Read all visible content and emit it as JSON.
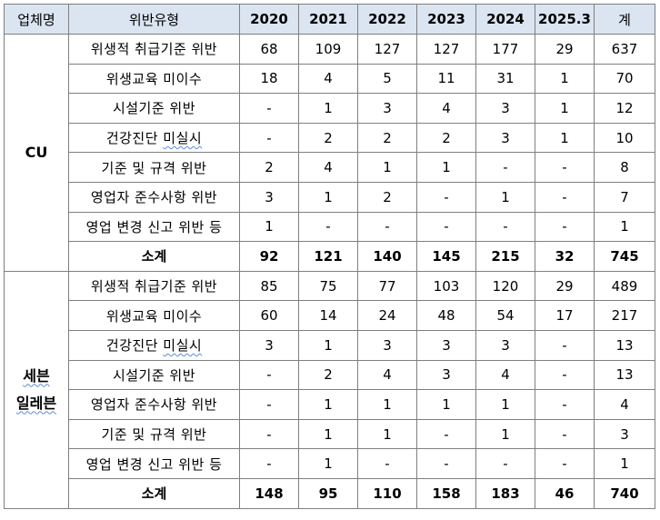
{
  "header": {
    "company": "업체명",
    "type": "위반유형",
    "years": [
      "2020",
      "2021",
      "2022",
      "2023",
      "2024",
      "2025.3"
    ],
    "total": "계"
  },
  "groups": [
    {
      "company_lines": [
        "CU"
      ],
      "rows": [
        {
          "type": "위생적 취급기준 위반",
          "values": [
            "68",
            "109",
            "127",
            "127",
            "177",
            "29"
          ],
          "total": "637"
        },
        {
          "type": "위생교육 미이수",
          "values": [
            "18",
            "4",
            "5",
            "11",
            "31",
            "1"
          ],
          "total": "70"
        },
        {
          "type": "시설기준 위반",
          "values": [
            "-",
            "1",
            "3",
            "4",
            "3",
            "1"
          ],
          "total": "12"
        },
        {
          "type": "건강진단 미실시",
          "values": [
            "-",
            "2",
            "2",
            "2",
            "3",
            "1"
          ],
          "total": "10"
        },
        {
          "type": "기준 및 규격 위반",
          "values": [
            "2",
            "4",
            "1",
            "1",
            "-",
            "-"
          ],
          "total": "8"
        },
        {
          "type": "영업자 준수사항 위반",
          "values": [
            "3",
            "1",
            "2",
            "-",
            "1",
            "-"
          ],
          "total": "7"
        },
        {
          "type": "영업 변경 신고 위반 등",
          "values": [
            "1",
            "-",
            "-",
            "-",
            "-",
            "-"
          ],
          "total": "1"
        }
      ],
      "subtotal": {
        "label": "소계",
        "values": [
          "92",
          "121",
          "140",
          "145",
          "215",
          "32"
        ],
        "total": "745"
      }
    },
    {
      "company_lines": [
        "세븐",
        "일레븐"
      ],
      "rows": [
        {
          "type": "위생적 취급기준 위반",
          "values": [
            "85",
            "75",
            "77",
            "103",
            "120",
            "29"
          ],
          "total": "489"
        },
        {
          "type": "위생교육 미이수",
          "values": [
            "60",
            "14",
            "24",
            "48",
            "54",
            "17"
          ],
          "total": "217"
        },
        {
          "type": "건강진단 미실시",
          "values": [
            "3",
            "1",
            "3",
            "3",
            "3",
            "-"
          ],
          "total": "13"
        },
        {
          "type": "시설기준 위반",
          "values": [
            "-",
            "2",
            "4",
            "3",
            "4",
            "-"
          ],
          "total": "13"
        },
        {
          "type": "영업자 준수사항 위반",
          "values": [
            "-",
            "1",
            "1",
            "1",
            "1",
            "-"
          ],
          "total": "4"
        },
        {
          "type": "기준 및 규격 위반",
          "values": [
            "-",
            "1",
            "1",
            "-",
            "1",
            "-"
          ],
          "total": "3"
        },
        {
          "type": "영업 변경 신고 위반 등",
          "values": [
            "-",
            "1",
            "-",
            "-",
            "-",
            "-"
          ],
          "total": "1"
        }
      ],
      "subtotal": {
        "label": "소계",
        "values": [
          "148",
          "95",
          "110",
          "158",
          "183",
          "46"
        ],
        "total": "740"
      }
    }
  ]
}
